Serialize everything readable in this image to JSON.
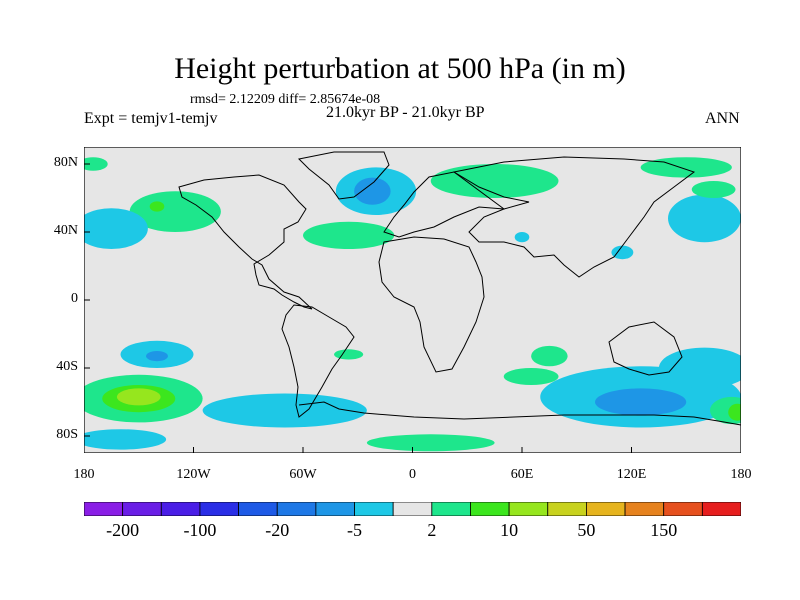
{
  "title": "Height perturbation at 500 hPa (in m)",
  "stats": "rmsd= 2.12209 diff= 2.85674e-08",
  "expt": "Expt = temjv1-temjv",
  "period": "21.0kyr BP - 21.0kyr BP",
  "season": "ANN",
  "lat_ticks": [
    {
      "value": 80,
      "label": "80N"
    },
    {
      "value": 40,
      "label": "40N"
    },
    {
      "value": 0,
      "label": "0"
    },
    {
      "value": -40,
      "label": "40S"
    },
    {
      "value": -80,
      "label": "80S"
    }
  ],
  "lon_ticks": [
    {
      "value": -180,
      "label": "180"
    },
    {
      "value": -120,
      "label": "120W"
    },
    {
      "value": -60,
      "label": "60W"
    },
    {
      "value": 0,
      "label": "0"
    },
    {
      "value": 60,
      "label": "60E"
    },
    {
      "value": 120,
      "label": "120E"
    },
    {
      "value": 180,
      "label": "180"
    }
  ],
  "colorbar": {
    "colors": [
      "#8a1ee6",
      "#6a1ee6",
      "#4a1ee6",
      "#2a2ee6",
      "#1e5ae6",
      "#1e78e6",
      "#1e96e6",
      "#1ec8e6",
      "#e6e6e6",
      "#1ee68c",
      "#3ce61e",
      "#96e61e",
      "#c8d21e",
      "#e6b41e",
      "#e6821e",
      "#e6501e",
      "#e61e1e"
    ],
    "labels": [
      {
        "index": 1,
        "label": "-200"
      },
      {
        "index": 3,
        "label": "-100"
      },
      {
        "index": 5,
        "label": "-20"
      },
      {
        "index": 7,
        "label": "-5"
      },
      {
        "index": 9,
        "label": "2"
      },
      {
        "index": 11,
        "label": "10"
      },
      {
        "index": 13,
        "label": "50"
      },
      {
        "index": 15,
        "label": "150"
      }
    ]
  },
  "chart_data": {
    "type": "heatmap",
    "title": "Height perturbation at 500 hPa (in m)",
    "x_range": [
      -180,
      180
    ],
    "y_range": [
      -90,
      90
    ],
    "anomalies": [
      {
        "lon": -20,
        "lat": 64,
        "rx": 22,
        "ry": 14,
        "color": "#1ec8e6"
      },
      {
        "lon": -22,
        "lat": 64,
        "rx": 10,
        "ry": 8,
        "color": "#1e96e6"
      },
      {
        "lon": 45,
        "lat": 70,
        "rx": 35,
        "ry": 10,
        "color": "#1ee68c"
      },
      {
        "lon": -35,
        "lat": 38,
        "rx": 25,
        "ry": 8,
        "color": "#1ee68c"
      },
      {
        "lon": -130,
        "lat": 52,
        "rx": 25,
        "ry": 12,
        "color": "#1ee68c"
      },
      {
        "lon": -140,
        "lat": 55,
        "rx": 4,
        "ry": 3,
        "color": "#3ce61e"
      },
      {
        "lon": -165,
        "lat": 42,
        "rx": 20,
        "ry": 12,
        "color": "#1ec8e6"
      },
      {
        "lon": 160,
        "lat": 48,
        "rx": 20,
        "ry": 14,
        "color": "#1ec8e6"
      },
      {
        "lon": 115,
        "lat": 28,
        "rx": 6,
        "ry": 4,
        "color": "#1ec8e6"
      },
      {
        "lon": 150,
        "lat": 78,
        "rx": 25,
        "ry": 6,
        "color": "#1ee68c"
      },
      {
        "lon": 165,
        "lat": 65,
        "rx": 12,
        "ry": 5,
        "color": "#1ee68c"
      },
      {
        "lon": -175,
        "lat": 80,
        "rx": 8,
        "ry": 4,
        "color": "#1ee68c"
      },
      {
        "lon": 60,
        "lat": 37,
        "rx": 4,
        "ry": 3,
        "color": "#1ec8e6"
      },
      {
        "lon": 125,
        "lat": -57,
        "rx": 55,
        "ry": 18,
        "color": "#1ec8e6"
      },
      {
        "lon": 125,
        "lat": -60,
        "rx": 25,
        "ry": 8,
        "color": "#1e96e6"
      },
      {
        "lon": 160,
        "lat": -40,
        "rx": 25,
        "ry": 12,
        "color": "#1ec8e6"
      },
      {
        "lon": 175,
        "lat": -65,
        "rx": 12,
        "ry": 8,
        "color": "#1ee68c"
      },
      {
        "lon": 178,
        "lat": -66,
        "rx": 5,
        "ry": 5,
        "color": "#3ce61e"
      },
      {
        "lon": -150,
        "lat": -58,
        "rx": 35,
        "ry": 14,
        "color": "#1ee68c"
      },
      {
        "lon": -150,
        "lat": -58,
        "rx": 20,
        "ry": 8,
        "color": "#3ce61e"
      },
      {
        "lon": -150,
        "lat": -57,
        "rx": 12,
        "ry": 5,
        "color": "#96e61e"
      },
      {
        "lon": -140,
        "lat": -32,
        "rx": 20,
        "ry": 8,
        "color": "#1ec8e6"
      },
      {
        "lon": -140,
        "lat": -33,
        "rx": 6,
        "ry": 3,
        "color": "#1e96e6"
      },
      {
        "lon": -70,
        "lat": -65,
        "rx": 45,
        "ry": 10,
        "color": "#1ec8e6"
      },
      {
        "lon": -160,
        "lat": -82,
        "rx": 25,
        "ry": 6,
        "color": "#1ec8e6"
      },
      {
        "lon": 10,
        "lat": -84,
        "rx": 35,
        "ry": 5,
        "color": "#1ee68c"
      },
      {
        "lon": 75,
        "lat": -33,
        "rx": 10,
        "ry": 6,
        "color": "#1ee68c"
      },
      {
        "lon": 65,
        "lat": -45,
        "rx": 15,
        "ry": 5,
        "color": "#1ee68c"
      },
      {
        "lon": -35,
        "lat": -32,
        "rx": 8,
        "ry": 3,
        "color": "#1ee68c"
      }
    ]
  }
}
